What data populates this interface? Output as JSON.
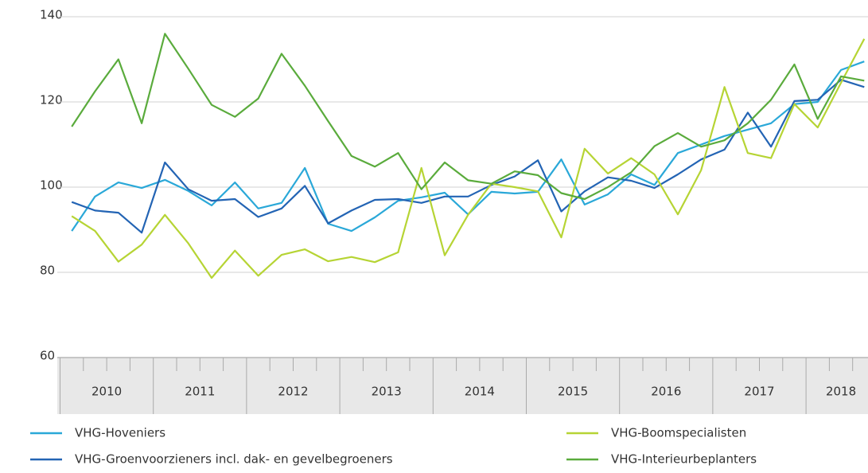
{
  "chart_data": {
    "type": "line",
    "categories": [
      "2010",
      null,
      null,
      null,
      "2011",
      null,
      null,
      null,
      "2012",
      null,
      null,
      null,
      "2013",
      null,
      null,
      null,
      "2014",
      null,
      null,
      null,
      "2015",
      null,
      null,
      null,
      "2016",
      null,
      null,
      null,
      "2017",
      null,
      null,
      null,
      "2018",
      null,
      null
    ],
    "series": [
      {
        "name": "VHG-Hoveniers",
        "color": "#2aa8d8",
        "values": [
          89.7,
          97.8,
          101.1,
          99.8,
          101.7,
          99.1,
          95.7,
          101.1,
          95.0,
          96.3,
          104.5,
          91.4,
          89.7,
          92.9,
          96.8,
          97.6,
          98.7,
          93.6,
          98.9,
          98.5,
          98.9,
          106.5,
          95.9,
          98.3,
          103.0,
          100.5,
          108.0,
          110.0,
          112.0,
          113.5,
          115.0,
          119.5,
          120.0,
          127.5,
          129.5
        ]
      },
      {
        "name": "VHG-Groenvoorzieners incl. dak- en gevelbegroeners",
        "color": "#2364b4",
        "values": [
          96.5,
          94.5,
          94.0,
          89.3,
          105.8,
          99.5,
          96.8,
          97.2,
          93.0,
          95.0,
          100.3,
          91.5,
          94.5,
          97.0,
          97.2,
          96.3,
          97.8,
          97.8,
          100.5,
          102.5,
          106.3,
          94.3,
          99.0,
          102.3,
          101.5,
          99.8,
          103.0,
          106.5,
          108.8,
          117.5,
          109.5,
          120.2,
          120.5,
          125.2,
          123.5
        ]
      },
      {
        "name": "VHG-Boomspecialisten",
        "color": "#b6d434",
        "values": [
          93.2,
          89.7,
          82.5,
          86.5,
          93.5,
          86.8,
          78.7,
          85.1,
          79.2,
          84.1,
          85.4,
          82.6,
          83.6,
          82.4,
          84.7,
          104.5,
          84.0,
          93.5,
          100.8,
          100.0,
          99.0,
          88.2,
          109.0,
          103.2,
          106.8,
          103.0,
          93.6,
          104.0,
          123.5,
          108.0,
          106.8,
          119.5,
          114.0,
          124.5,
          134.8
        ]
      },
      {
        "name": "VHG-Interieurbeplanters",
        "color": "#5aab3c",
        "values": [
          114.2,
          122.5,
          130.0,
          115.0,
          136.0,
          127.8,
          119.3,
          116.5,
          120.8,
          131.3,
          123.8,
          115.5,
          107.3,
          104.8,
          108.0,
          99.5,
          105.8,
          101.6,
          100.8,
          103.7,
          102.8,
          98.6,
          97.2,
          100.0,
          103.5,
          109.6,
          112.7,
          109.5,
          111.0,
          115.0,
          120.5,
          128.8,
          116.0,
          126.0,
          125.0
        ]
      }
    ],
    "ylim": [
      60,
      140
    ],
    "yticks": [
      60,
      80,
      100,
      120,
      140
    ],
    "grid": true
  }
}
